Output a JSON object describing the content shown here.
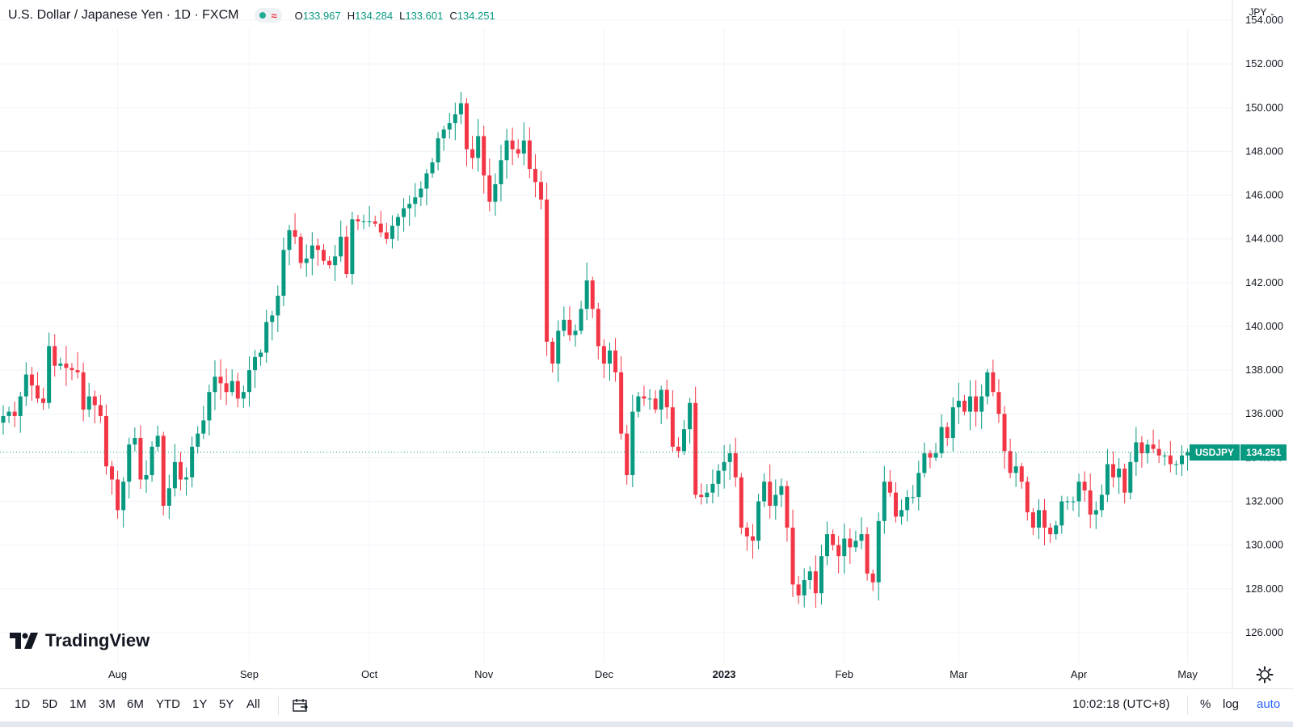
{
  "header": {
    "title": "U.S. Dollar / Japanese Yen · 1D · FXCM",
    "ohlc": [
      {
        "key": "O",
        "value": "133.967"
      },
      {
        "key": "H",
        "value": "134.284"
      },
      {
        "key": "L",
        "value": "133.601"
      },
      {
        "key": "C",
        "value": "134.251"
      }
    ],
    "status_wave": "≈",
    "currency": "JPY"
  },
  "price_tag": {
    "symbol": "USDJPY",
    "value": "134.251"
  },
  "logo": {
    "text": "TradingView"
  },
  "range_buttons": [
    "1D",
    "5D",
    "1M",
    "3M",
    "6M",
    "YTD",
    "1Y",
    "5Y",
    "All"
  ],
  "bottom_bar": {
    "time": "10:02:18 (UTC+8)",
    "percent": "%",
    "log": "log",
    "auto": "auto"
  },
  "colors": {
    "up": "#089981",
    "down": "#f23645",
    "accent": "#2962ff",
    "grid": "#f0f3fa"
  },
  "icons": [
    "status-dot-icon",
    "wave-icon",
    "chevron-down-icon",
    "go-to-date-icon",
    "settings-gear-icon",
    "tradingview-logo-icon"
  ],
  "chart_data": {
    "type": "candlestick",
    "ylim": [
      125,
      154
    ],
    "yticks": [
      126,
      128,
      130,
      132,
      134,
      136,
      138,
      140,
      142,
      144,
      146,
      148,
      150,
      152,
      154
    ],
    "ytick_labels": [
      "126.000",
      "128.000",
      "130.000",
      "132.000",
      "134.000",
      "136.000",
      "138.000",
      "140.000",
      "142.000",
      "144.000",
      "146.000",
      "148.000",
      "150.000",
      "152.000",
      "154.000"
    ],
    "xtick_labels": [
      "Aug",
      "Sep",
      "Oct",
      "Nov",
      "Dec",
      "2023",
      "Feb",
      "Mar",
      "Apr",
      "May"
    ],
    "xticks_index": [
      20,
      43,
      64,
      84,
      105,
      126,
      147,
      167,
      188,
      207
    ],
    "last_price": 134.251,
    "closes": [
      135.9,
      136.1,
      135.9,
      136.8,
      137.8,
      137.3,
      136.7,
      136.5,
      139.1,
      138.2,
      138.3,
      138.1,
      138.0,
      137.9,
      136.2,
      136.8,
      136.4,
      135.9,
      133.6,
      133.0,
      131.6,
      132.9,
      134.6,
      134.9,
      133.0,
      133.2,
      134.5,
      135.0,
      131.8,
      132.6,
      133.8,
      133.0,
      133.1,
      134.5,
      135.1,
      135.7,
      137.0,
      137.7,
      137.4,
      137.0,
      137.5,
      136.7,
      137.0,
      138.0,
      138.6,
      138.8,
      140.2,
      140.5,
      141.4,
      143.5,
      144.4,
      144.1,
      142.9,
      143.1,
      143.7,
      143.5,
      143.0,
      142.8,
      143.2,
      144.1,
      142.4,
      144.9,
      144.8,
      144.8,
      144.8,
      144.7,
      144.3,
      144.0,
      144.6,
      145.0,
      145.4,
      145.6,
      145.9,
      146.3,
      147.0,
      147.5,
      148.6,
      149.0,
      149.3,
      149.7,
      150.2,
      148.1,
      147.7,
      148.7,
      146.9,
      145.7,
      146.5,
      147.6,
      148.5,
      148.1,
      147.9,
      148.5,
      147.2,
      146.6,
      145.8,
      139.3,
      138.3,
      139.8,
      140.3,
      139.6,
      139.8,
      140.8,
      142.1,
      140.8,
      139.1,
      138.3,
      138.9,
      137.9,
      135.1,
      133.2,
      136.1,
      136.8,
      136.7,
      136.7,
      136.2,
      137.1,
      136.3,
      134.5,
      134.3,
      135.3,
      136.5,
      132.3,
      132.2,
      132.4,
      132.8,
      133.4,
      133.8,
      134.2,
      133.1,
      130.8,
      130.4,
      130.2,
      132.0,
      132.9,
      131.8,
      132.3,
      132.7,
      130.8,
      128.2,
      127.7,
      128.4,
      128.8,
      127.8,
      129.5,
      130.5,
      130.0,
      129.5,
      130.3,
      129.9,
      130.2,
      130.5,
      128.7,
      128.3,
      131.1,
      132.9,
      132.4,
      131.3,
      131.6,
      132.2,
      132.2,
      133.3,
      134.2,
      134.0,
      134.2,
      135.4,
      134.9,
      136.3,
      136.6,
      136.1,
      136.8,
      136.1,
      136.8,
      137.9,
      137.0,
      136.0,
      134.3,
      133.3,
      133.6,
      132.9,
      131.5,
      130.8,
      131.6,
      130.8,
      130.5,
      130.9,
      132.0,
      132.0,
      132.0,
      132.9,
      132.5,
      131.4,
      131.6,
      132.3,
      133.7,
      133.1,
      133.5,
      132.4,
      133.8,
      134.7,
      134.2,
      134.6,
      134.4,
      134.1,
      134.1,
      133.7,
      133.7,
      134.1,
      134.25
    ]
  }
}
